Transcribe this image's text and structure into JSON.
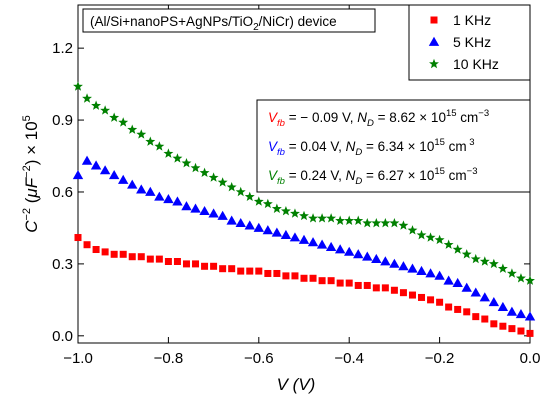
{
  "chart_data": {
    "type": "scatter",
    "title": "(Al/Si+nanoPS+AgNPs/TiO2/NiCr) device",
    "title_parts": {
      "pre": "(Al/Si+nanoPS+AgNPs/TiO",
      "sub": "2",
      "post": "/NiCr) device"
    },
    "xlabel": "V (V)",
    "ylabel": "C−2 (μF−2) × 105",
    "ylabel_parts": {
      "c": "C",
      "c_exp": "−2",
      "open": " (",
      "mu": "μ",
      "f": "F",
      "f_exp": "−2",
      "close": ") × 10",
      "ten_exp": "5"
    },
    "xlim": [
      -1.0,
      0.0
    ],
    "ylim": [
      -0.03,
      1.38
    ],
    "x_ticks": [
      "−1.0",
      "−0.8",
      "−0.6",
      "−0.4",
      "−0.2",
      "0.0"
    ],
    "x_tick_values": [
      -1.0,
      -0.8,
      -0.6,
      -0.4,
      -0.2,
      0.0
    ],
    "y_ticks": [
      "0.0",
      "0.3",
      "0.6",
      "0.9",
      "1.2"
    ],
    "y_tick_values": [
      0.0,
      0.3,
      0.6,
      0.9,
      1.2
    ],
    "grid": false,
    "legend_position": "top-right",
    "x": [
      -1.0,
      -0.98,
      -0.96,
      -0.94,
      -0.92,
      -0.9,
      -0.88,
      -0.86,
      -0.84,
      -0.82,
      -0.8,
      -0.78,
      -0.76,
      -0.74,
      -0.72,
      -0.7,
      -0.68,
      -0.66,
      -0.64,
      -0.62,
      -0.6,
      -0.58,
      -0.56,
      -0.54,
      -0.52,
      -0.5,
      -0.48,
      -0.46,
      -0.44,
      -0.42,
      -0.4,
      -0.38,
      -0.36,
      -0.34,
      -0.32,
      -0.3,
      -0.28,
      -0.26,
      -0.24,
      -0.22,
      -0.2,
      -0.18,
      -0.16,
      -0.14,
      -0.12,
      -0.1,
      -0.08,
      -0.06,
      -0.04,
      -0.02,
      0.0
    ],
    "series": [
      {
        "name": "1 KHz",
        "marker": "square",
        "color": "#ff0000",
        "values": [
          0.41,
          0.38,
          0.36,
          0.35,
          0.34,
          0.34,
          0.33,
          0.33,
          0.32,
          0.32,
          0.31,
          0.31,
          0.3,
          0.3,
          0.29,
          0.29,
          0.28,
          0.28,
          0.27,
          0.27,
          0.27,
          0.26,
          0.26,
          0.25,
          0.25,
          0.24,
          0.24,
          0.23,
          0.23,
          0.22,
          0.22,
          0.21,
          0.21,
          0.2,
          0.2,
          0.19,
          0.18,
          0.17,
          0.16,
          0.15,
          0.14,
          0.12,
          0.11,
          0.1,
          0.08,
          0.07,
          0.05,
          0.04,
          0.03,
          0.02,
          0.01
        ]
      },
      {
        "name": "5 KHz",
        "marker": "triangle",
        "color": "#0000ff",
        "values": [
          0.67,
          0.73,
          0.71,
          0.69,
          0.67,
          0.65,
          0.63,
          0.61,
          0.6,
          0.58,
          0.57,
          0.56,
          0.54,
          0.53,
          0.52,
          0.51,
          0.5,
          0.48,
          0.47,
          0.46,
          0.45,
          0.44,
          0.43,
          0.42,
          0.41,
          0.4,
          0.39,
          0.38,
          0.37,
          0.36,
          0.35,
          0.34,
          0.33,
          0.32,
          0.31,
          0.3,
          0.29,
          0.28,
          0.27,
          0.26,
          0.25,
          0.23,
          0.22,
          0.2,
          0.18,
          0.16,
          0.14,
          0.12,
          0.1,
          0.09,
          0.08
        ]
      },
      {
        "name": "10 KHz",
        "marker": "star",
        "color": "#008000",
        "values": [
          1.04,
          0.99,
          0.96,
          0.94,
          0.91,
          0.89,
          0.86,
          0.84,
          0.81,
          0.79,
          0.76,
          0.74,
          0.72,
          0.7,
          0.68,
          0.66,
          0.64,
          0.62,
          0.6,
          0.58,
          0.56,
          0.55,
          0.53,
          0.52,
          0.51,
          0.5,
          0.49,
          0.49,
          0.49,
          0.48,
          0.48,
          0.48,
          0.47,
          0.47,
          0.47,
          0.47,
          0.46,
          0.44,
          0.42,
          0.41,
          0.4,
          0.38,
          0.36,
          0.34,
          0.32,
          0.31,
          0.3,
          0.28,
          0.26,
          0.24,
          0.23
        ]
      }
    ],
    "annotations": [
      {
        "color": "#ff0000",
        "vsym": "V",
        "vsub": "fb",
        "v_text": " = − 0.09 V, ",
        "n": "N",
        "nsub": "D",
        "n_text": " = 8.62 × 10",
        "exp": "15",
        "unit": " cm",
        "unit_exp": "−3"
      },
      {
        "color": "#0000ff",
        "vsym": "V",
        "vsub": "fb",
        "v_text": " = 0.04 V, ",
        "n": "N",
        "nsub": "D",
        "n_text": " = 6.34 × 10",
        "exp": "15",
        "unit": " cm",
        "unit_exp": " 3"
      },
      {
        "color": "#008000",
        "vsym": "V",
        "vsub": "fb",
        "v_text": " = 0.24 V, ",
        "n": "N",
        "nsub": "D",
        "n_text": " = 6.27 × 10",
        "exp": "15",
        "unit": " cm",
        "unit_exp": "−3"
      }
    ]
  }
}
